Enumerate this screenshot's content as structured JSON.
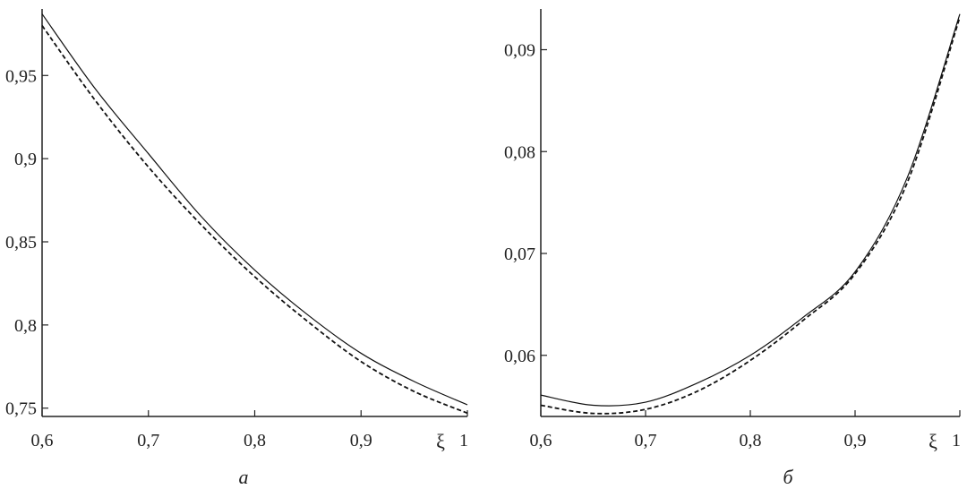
{
  "chart_data": [
    {
      "type": "line",
      "panel_label": "а",
      "xlabel": "ξ",
      "xlim": [
        0.6,
        1.0
      ],
      "ylim": [
        0.745,
        0.99
      ],
      "x_ticks": [
        0.6,
        0.7,
        0.8,
        0.9,
        1.0
      ],
      "x_tick_labels": [
        "0,6",
        "0,7",
        "0,8",
        "0,9",
        "1"
      ],
      "y_ticks": [
        0.75,
        0.8,
        0.85,
        0.9,
        0.95
      ],
      "y_tick_labels": [
        "0,75",
        "0,8",
        "0,85",
        "0,9",
        "0,95"
      ],
      "series": [
        {
          "style": "solid",
          "x": [
            0.6,
            0.65,
            0.7,
            0.75,
            0.8,
            0.85,
            0.9,
            0.95,
            1.0
          ],
          "y": [
            0.987,
            0.942,
            0.903,
            0.865,
            0.833,
            0.806,
            0.783,
            0.766,
            0.752
          ]
        },
        {
          "style": "dashed",
          "x": [
            0.6,
            0.65,
            0.7,
            0.75,
            0.8,
            0.85,
            0.9,
            0.95,
            1.0
          ],
          "y": [
            0.98,
            0.935,
            0.895,
            0.86,
            0.829,
            0.802,
            0.778,
            0.76,
            0.747
          ]
        }
      ],
      "grid": false
    },
    {
      "type": "line",
      "panel_label": "б",
      "xlabel": "ξ",
      "xlim": [
        0.6,
        1.0
      ],
      "ylim": [
        0.054,
        0.094
      ],
      "x_ticks": [
        0.6,
        0.7,
        0.8,
        0.9,
        1.0
      ],
      "x_tick_labels": [
        "0,6",
        "0,7",
        "0,8",
        "0,9",
        "1"
      ],
      "y_ticks": [
        0.06,
        0.07,
        0.08,
        0.09
      ],
      "y_tick_labels": [
        "0,06",
        "0,07",
        "0,08",
        "0,09"
      ],
      "series": [
        {
          "style": "solid",
          "x": [
            0.6,
            0.65,
            0.7,
            0.75,
            0.8,
            0.85,
            0.9,
            0.95,
            1.0
          ],
          "y": [
            0.0561,
            0.0551,
            0.0554,
            0.0573,
            0.06,
            0.0637,
            0.0682,
            0.0775,
            0.0935
          ]
        },
        {
          "style": "dashed",
          "x": [
            0.6,
            0.65,
            0.7,
            0.75,
            0.8,
            0.85,
            0.9,
            0.95,
            1.0
          ],
          "y": [
            0.0551,
            0.0543,
            0.0547,
            0.0565,
            0.0595,
            0.0634,
            0.068,
            0.077,
            0.0932
          ]
        }
      ],
      "grid": false
    }
  ]
}
